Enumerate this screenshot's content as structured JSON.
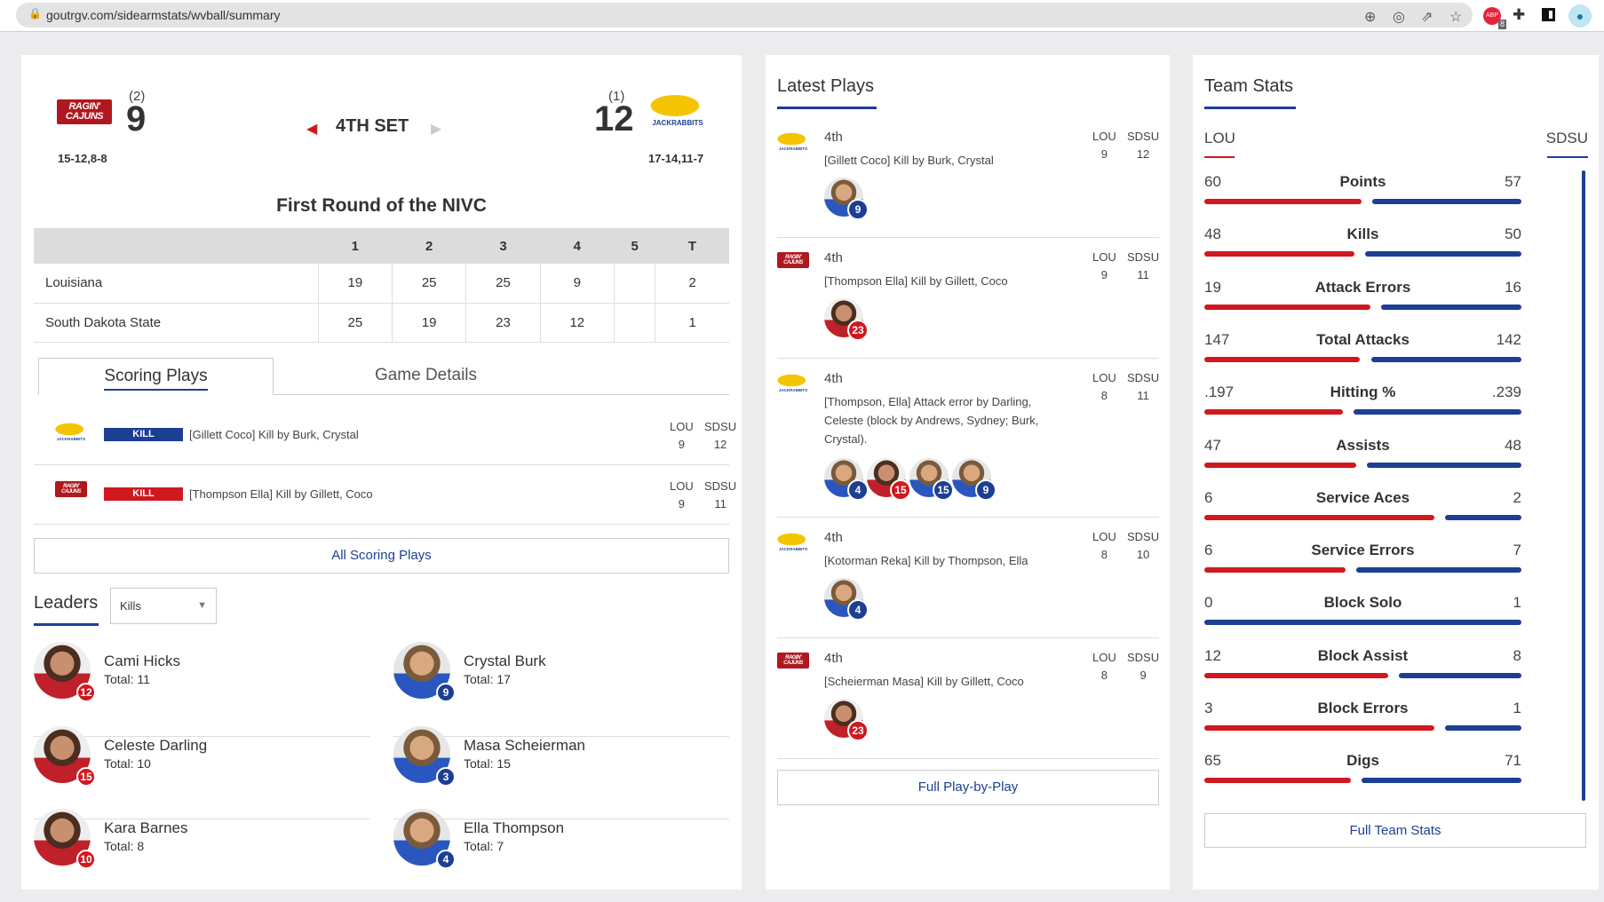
{
  "browser": {
    "url": "goutrgv.com/sidearmstats/wvball/summary",
    "extension_badge": "8"
  },
  "scoreboard": {
    "home": {
      "logo_text": "RAGIN' CAJUNS",
      "seed": "(2)",
      "score": "9",
      "set_scores": "15-12,8-8"
    },
    "away": {
      "logo_text": "JACKRABBITS",
      "seed": "(1)",
      "score": "12",
      "set_scores": "17-14,11-7"
    },
    "current_set": "4TH SET",
    "event": "First Round of the NIVC"
  },
  "linescore": {
    "headers": [
      "",
      "1",
      "2",
      "3",
      "4",
      "5",
      "T"
    ],
    "rows": [
      [
        "Louisiana",
        "19",
        "25",
        "25",
        "9",
        "",
        "2"
      ],
      [
        "South Dakota State",
        "25",
        "19",
        "23",
        "12",
        "",
        "1"
      ]
    ]
  },
  "tabs": [
    "Scoring Plays",
    "Game Details"
  ],
  "scoring_plays": [
    {
      "team": "sdsu",
      "type": "KILL",
      "text": "[Gillett Coco] Kill by Burk, Crystal",
      "lou_label": "LOU",
      "sdsu_label": "SDSU",
      "lou": "9",
      "sdsu": "12"
    },
    {
      "team": "lou",
      "type": "KILL",
      "text": "[Thompson Ella] Kill by Gillett, Coco",
      "lou_label": "LOU",
      "sdsu_label": "SDSU",
      "lou": "9",
      "sdsu": "11"
    }
  ],
  "all_scoring_plays": "All Scoring Plays",
  "leaders": {
    "title": "Leaders",
    "select": "Kills",
    "items": [
      {
        "name": "Cami Hicks",
        "total": "Total: 11",
        "number": "12",
        "team": "lou"
      },
      {
        "name": "Crystal Burk",
        "total": "Total: 17",
        "number": "9",
        "team": "sdsu"
      },
      {
        "name": "Celeste Darling",
        "total": "Total: 10",
        "number": "15",
        "team": "lou"
      },
      {
        "name": "Masa Scheierman",
        "total": "Total: 15",
        "number": "3",
        "team": "sdsu"
      },
      {
        "name": "Kara Barnes",
        "total": "Total: 8",
        "number": "10",
        "team": "lou"
      },
      {
        "name": "Ella Thompson",
        "total": "Total: 7",
        "number": "4",
        "team": "sdsu"
      }
    ]
  },
  "latest_plays": {
    "title": "Latest Plays",
    "items": [
      {
        "team": "sdsu",
        "set": "4th",
        "text": "[Gillett Coco] Kill by Burk, Crystal",
        "lou": "9",
        "sdsu": "12",
        "players": [
          {
            "n": "9",
            "t": "sdsu"
          }
        ]
      },
      {
        "team": "lou",
        "set": "4th",
        "text": "[Thompson Ella] Kill by Gillett, Coco",
        "lou": "9",
        "sdsu": "11",
        "players": [
          {
            "n": "23",
            "t": "lou"
          }
        ]
      },
      {
        "team": "sdsu",
        "set": "4th",
        "text": "[Thompson, Ella] Attack error by Darling, Celeste (block by Andrews, Sydney; Burk, Crystal).",
        "lou": "8",
        "sdsu": "11",
        "players": [
          {
            "n": "4",
            "t": "sdsu"
          },
          {
            "n": "15",
            "t": "lou"
          },
          {
            "n": "15",
            "t": "sdsu"
          },
          {
            "n": "9",
            "t": "sdsu"
          }
        ]
      },
      {
        "team": "sdsu",
        "set": "4th",
        "text": "[Kotorman Reka] Kill by Thompson, Ella",
        "lou": "8",
        "sdsu": "10",
        "players": [
          {
            "n": "4",
            "t": "sdsu"
          }
        ]
      },
      {
        "team": "lou",
        "set": "4th",
        "text": "[Scheierman Masa] Kill by Gillett, Coco",
        "lou": "8",
        "sdsu": "9",
        "players": [
          {
            "n": "23",
            "t": "lou"
          }
        ]
      }
    ],
    "lou_label": "LOU",
    "sdsu_label": "SDSU",
    "button": "Full Play-by-Play"
  },
  "team_stats": {
    "title": "Team Stats",
    "lou_label": "LOU",
    "sdsu_label": "SDSU",
    "button": "Full Team Stats",
    "colors": {
      "lou": "#d0181f",
      "sdsu": "#1c3f94"
    },
    "rows": [
      {
        "label": "Points",
        "lou": "60",
        "sdsu": "57"
      },
      {
        "label": "Kills",
        "lou": "48",
        "sdsu": "50"
      },
      {
        "label": "Attack Errors",
        "lou": "19",
        "sdsu": "16"
      },
      {
        "label": "Total Attacks",
        "lou": "147",
        "sdsu": "142"
      },
      {
        "label": "Hitting %",
        "lou": ".197",
        "sdsu": ".239"
      },
      {
        "label": "Assists",
        "lou": "47",
        "sdsu": "48"
      },
      {
        "label": "Service Aces",
        "lou": "6",
        "sdsu": "2"
      },
      {
        "label": "Service Errors",
        "lou": "6",
        "sdsu": "7"
      },
      {
        "label": "Block Solo",
        "lou": "0",
        "sdsu": "1"
      },
      {
        "label": "Block Assist",
        "lou": "12",
        "sdsu": "8"
      },
      {
        "label": "Block Errors",
        "lou": "3",
        "sdsu": "1"
      },
      {
        "label": "Digs",
        "lou": "65",
        "sdsu": "71"
      }
    ]
  }
}
